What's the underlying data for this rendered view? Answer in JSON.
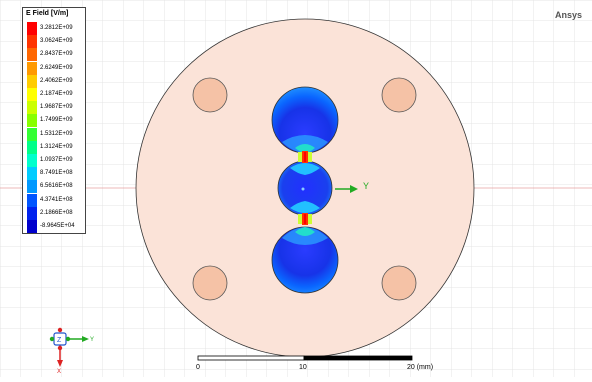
{
  "brand": "Ansys",
  "legend": {
    "title": "E Field [V/m]",
    "entries": [
      {
        "value": "3.2812E+09",
        "color": "#ff0000"
      },
      {
        "value": "3.0624E+09",
        "color": "#ff3300"
      },
      {
        "value": "2.8437E+09",
        "color": "#ff6600"
      },
      {
        "value": "2.6249E+09",
        "color": "#ff9900"
      },
      {
        "value": "2.4062E+09",
        "color": "#ffcc00"
      },
      {
        "value": "2.1874E+09",
        "color": "#ffff00"
      },
      {
        "value": "1.9687E+09",
        "color": "#ccff00"
      },
      {
        "value": "1.7499E+09",
        "color": "#88ff00"
      },
      {
        "value": "1.5312E+09",
        "color": "#33ff33"
      },
      {
        "value": "1.3124E+09",
        "color": "#00ff88"
      },
      {
        "value": "1.0937E+09",
        "color": "#00ffcc"
      },
      {
        "value": "8.7491E+08",
        "color": "#00ccff"
      },
      {
        "value": "6.5616E+08",
        "color": "#0099ff"
      },
      {
        "value": "4.3741E+08",
        "color": "#0055ff"
      },
      {
        "value": "2.1866E+08",
        "color": "#0022ee"
      },
      {
        "value": "-8.9645E+04",
        "color": "#0000cc"
      }
    ]
  },
  "axis": {
    "y_label": "Y",
    "triad_z": "Z",
    "triad_y": "Y",
    "triad_x": "X"
  },
  "scale": {
    "label_0": "0",
    "label_10": "10",
    "label_20": "20 (mm)"
  }
}
